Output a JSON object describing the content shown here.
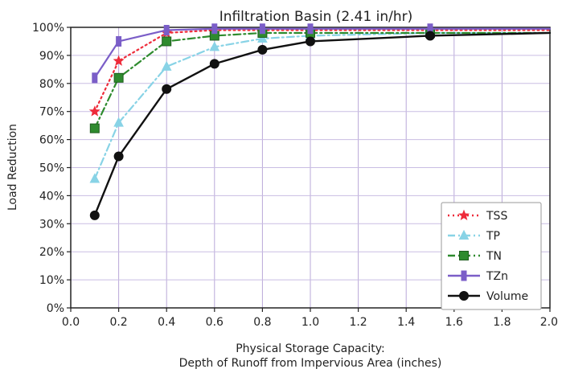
{
  "chart_data": {
    "type": "line",
    "title": "Infiltration Basin (2.41 in/hr)",
    "xlabel_line1": "Physical Storage Capacity:",
    "xlabel_line2": "Depth of Runoff  from Impervious Area (inches)",
    "ylabel": "Load Reduction",
    "xlim": [
      0.0,
      2.0
    ],
    "ylim": [
      0,
      100
    ],
    "x_ticks": [
      "0.0",
      "0.2",
      "0.4",
      "0.6",
      "0.8",
      "1.0",
      "1.2",
      "1.4",
      "1.6",
      "1.8",
      "2.0"
    ],
    "y_ticks": [
      "0%",
      "10%",
      "20%",
      "30%",
      "40%",
      "50%",
      "60%",
      "70%",
      "80%",
      "90%",
      "100%"
    ],
    "grid": true,
    "legend_position": "bottom-right",
    "series": [
      {
        "name": "TSS",
        "color": "#ee2b3a",
        "dash": "dotted",
        "marker": "star",
        "x": [
          0.1,
          0.2,
          0.4,
          0.6,
          0.8,
          1.0,
          1.5,
          2.0
        ],
        "y": [
          70,
          88,
          98,
          99,
          99,
          99,
          99,
          99
        ]
      },
      {
        "name": "TP",
        "color": "#88d3e6",
        "dash": "dashdot",
        "marker": "triangle",
        "x": [
          0.1,
          0.2,
          0.4,
          0.6,
          0.8,
          1.0,
          1.5,
          2.0
        ],
        "y": [
          46,
          66,
          86,
          93,
          96,
          97,
          98,
          98
        ]
      },
      {
        "name": "TN",
        "color": "#2e8b2e",
        "dash": "dashdot",
        "marker": "square",
        "x": [
          0.1,
          0.2,
          0.4,
          0.6,
          0.8,
          1.0,
          1.5,
          2.0
        ],
        "y": [
          64,
          82,
          95,
          97,
          98,
          98,
          98,
          98
        ]
      },
      {
        "name": "TZn",
        "color": "#7b5ec8",
        "dash": "solid",
        "marker": "bar",
        "x": [
          0.1,
          0.2,
          0.4,
          0.6,
          0.8,
          1.0,
          1.5,
          2.0
        ],
        "y": [
          82,
          95,
          99,
          99.5,
          99.5,
          99.5,
          99.5,
          99.5
        ]
      },
      {
        "name": "Volume",
        "color": "#111111",
        "dash": "solid",
        "marker": "circle",
        "x": [
          0.1,
          0.2,
          0.4,
          0.6,
          0.8,
          1.0,
          1.5,
          2.0
        ],
        "y": [
          33,
          54,
          78,
          87,
          92,
          95,
          97,
          98
        ]
      }
    ]
  }
}
